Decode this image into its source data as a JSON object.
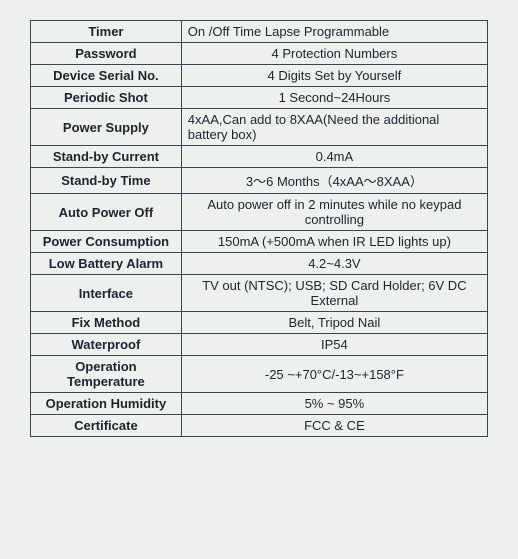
{
  "table": {
    "rows": [
      {
        "label": "Timer",
        "value": "On /Off   Time Lapse Programmable",
        "align": "left"
      },
      {
        "label": "Password",
        "value": "4 Protection Numbers",
        "align": "center"
      },
      {
        "label": "Device Serial No.",
        "value": "4 Digits Set by Yourself",
        "align": "center"
      },
      {
        "label": "Periodic Shot",
        "value": "1 Second~24Hours",
        "align": "center"
      },
      {
        "label": "Power Supply",
        "value": "4xAA,Can add to 8XAA(Need the additional battery box)",
        "align": "left"
      },
      {
        "label": "Stand-by Current",
        "value": "0.4mA",
        "align": "center"
      },
      {
        "label": "Stand-by Time",
        "value": "3～6 Months（4xAA～8XAA）",
        "align": "center"
      },
      {
        "label": "Auto Power Off",
        "value": "Auto power off in 2 minutes while no keypad controlling",
        "align": "center"
      },
      {
        "label": "Power Consumption",
        "value": "150mA (+500mA when IR LED lights up)",
        "align": "center"
      },
      {
        "label": "Low Battery Alarm",
        "value": "4.2~4.3V",
        "align": "center"
      },
      {
        "label": "Interface",
        "value": "TV out (NTSC); USB; SD Card Holder; 6V DC External",
        "align": "center"
      },
      {
        "label": "Fix Method",
        "value": "Belt, Tripod Nail",
        "align": "center"
      },
      {
        "label": "Waterproof",
        "value": "IP54",
        "align": "center"
      },
      {
        "label": "Operation Temperature",
        "value": "-25 ~+70°C/-13~+158°F",
        "align": "center"
      },
      {
        "label": "Operation Humidity",
        "value": "5% ~ 95%",
        "align": "center"
      },
      {
        "label": "Certificate",
        "value": "FCC & CE",
        "align": "center"
      }
    ],
    "border_color": "#3a4550",
    "background_color": "#eef0ed",
    "text_color": "#1a2530",
    "label_fontweight": "bold",
    "font_size": 13
  }
}
